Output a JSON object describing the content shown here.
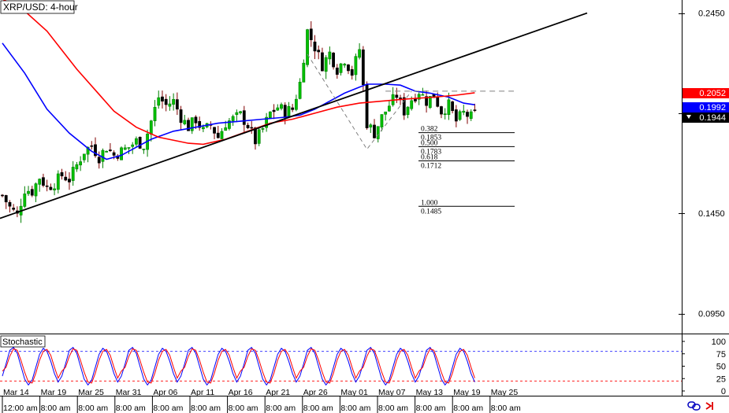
{
  "chart_data": [
    {
      "type": "candlestick",
      "title": "XRP/USD: 4-hour",
      "y_ticks": [
        0.245,
        0.195,
        0.145,
        0.095
      ],
      "y_tick_labels": [
        "0.2450",
        "0.1450",
        "0.0950"
      ],
      "ylim": [
        0.085,
        0.2515
      ],
      "x_labels": [
        "Mar 14",
        "Mar 19",
        "Mar 25",
        "Mar 31",
        "Apr 06",
        "Apr 11",
        "Apr 16",
        "Apr 21",
        "Apr 26",
        "May 01",
        "May 07",
        "May 13",
        "May 19",
        "May 25"
      ],
      "x_sublabels": [
        "12:00 am",
        "8:00 am",
        "8:00 am",
        "8:00 am",
        "8:00 am",
        "8:00 am",
        "8:00 am",
        "8:00 am",
        "8:00 am",
        "8:00 am",
        "8:00 am",
        "8:00 am",
        "8:00 am",
        "8:00 am"
      ],
      "price_badges": [
        {
          "value": "0.2052",
          "color": "#ff0000"
        },
        {
          "value": "0.1992",
          "color": "#0000ff"
        },
        {
          "value": "0.1944",
          "color": "#000000"
        }
      ],
      "trendline": {
        "from": [
          "Mar 14",
          0.1425
        ],
        "to": [
          "May 29",
          0.245
        ],
        "color": "#000000"
      },
      "resistance_dashed": 0.206,
      "moving_averages": [
        {
          "color": "#0000ff",
          "points": [
            [
              0,
              0.23
            ],
            [
              6,
              0.215
            ],
            [
              12,
              0.197
            ],
            [
              18,
              0.185
            ],
            [
              24,
              0.176
            ],
            [
              28,
              0.172
            ],
            [
              32,
              0.174
            ],
            [
              36,
              0.178
            ],
            [
              40,
              0.182
            ],
            [
              46,
              0.186
            ],
            [
              52,
              0.188
            ],
            [
              58,
              0.19
            ],
            [
              64,
              0.191
            ],
            [
              70,
              0.192
            ],
            [
              76,
              0.193
            ],
            [
              80,
              0.194
            ],
            [
              84,
              0.197
            ],
            [
              88,
              0.201
            ],
            [
              92,
              0.205
            ],
            [
              96,
              0.208
            ],
            [
              98,
              0.2095
            ],
            [
              103,
              0.2095
            ],
            [
              107,
              0.209
            ],
            [
              111,
              0.206
            ],
            [
              115,
              0.205
            ],
            [
              120,
              0.203
            ],
            [
              124,
              0.2
            ],
            [
              127,
              0.1992
            ]
          ]
        },
        {
          "color": "#ff0000",
          "points": [
            [
              0,
              0.252
            ],
            [
              6,
              0.246
            ],
            [
              12,
              0.236
            ],
            [
              20,
              0.217
            ],
            [
              30,
              0.196
            ],
            [
              36,
              0.188
            ],
            [
              42,
              0.183
            ],
            [
              50,
              0.18
            ],
            [
              54,
              0.1795
            ],
            [
              60,
              0.182
            ],
            [
              66,
              0.186
            ],
            [
              72,
              0.19
            ],
            [
              78,
              0.192
            ],
            [
              84,
              0.195
            ],
            [
              90,
              0.198
            ],
            [
              96,
              0.2
            ],
            [
              102,
              0.201
            ],
            [
              108,
              0.202
            ],
            [
              116,
              0.203
            ],
            [
              122,
              0.204
            ],
            [
              127,
              0.2052
            ]
          ]
        }
      ],
      "zigzag": {
        "points": [
          [
            82,
            0.2245
          ],
          [
            98,
            0.177
          ],
          [
            110,
            0.206
          ]
        ],
        "color": "#808080"
      },
      "fibonacci": [
        {
          "ratio": "0.382",
          "price": "0.1853",
          "y": 0.1853
        },
        {
          "ratio": "0.500",
          "price": "0.1783",
          "y": 0.1783
        },
        {
          "ratio": "0.618",
          "price": "0.1712",
          "y": 0.1712
        },
        {
          "ratio": "1.000",
          "price": "0.1485",
          "y": 0.1485
        }
      ],
      "price_path": [
        [
          0,
          0.154
        ],
        [
          2,
          0.148
        ],
        [
          4,
          0.144
        ],
        [
          6,
          0.157
        ],
        [
          8,
          0.156
        ],
        [
          10,
          0.163
        ],
        [
          12,
          0.158
        ],
        [
          14,
          0.16
        ],
        [
          16,
          0.164
        ],
        [
          18,
          0.162
        ],
        [
          20,
          0.169
        ],
        [
          22,
          0.176
        ],
        [
          24,
          0.179
        ],
        [
          26,
          0.173
        ],
        [
          28,
          0.178
        ],
        [
          30,
          0.174
        ],
        [
          32,
          0.176
        ],
        [
          34,
          0.178
        ],
        [
          36,
          0.181
        ],
        [
          38,
          0.179
        ],
        [
          40,
          0.191
        ],
        [
          42,
          0.203
        ],
        [
          44,
          0.199
        ],
        [
          46,
          0.201
        ],
        [
          48,
          0.193
        ],
        [
          50,
          0.188
        ],
        [
          52,
          0.192
        ],
        [
          54,
          0.186
        ],
        [
          56,
          0.189
        ],
        [
          58,
          0.183
        ],
        [
          60,
          0.19
        ],
        [
          62,
          0.192
        ],
        [
          64,
          0.194
        ],
        [
          66,
          0.189
        ],
        [
          68,
          0.181
        ],
        [
          70,
          0.187
        ],
        [
          72,
          0.195
        ],
        [
          74,
          0.198
        ],
        [
          76,
          0.196
        ],
        [
          78,
          0.197
        ],
        [
          80,
          0.21
        ],
        [
          82,
          0.236
        ],
        [
          84,
          0.228
        ],
        [
          86,
          0.219
        ],
        [
          88,
          0.225
        ],
        [
          90,
          0.217
        ],
        [
          92,
          0.222
        ],
        [
          94,
          0.215
        ],
        [
          96,
          0.227
        ],
        [
          98,
          0.19
        ],
        [
          100,
          0.185
        ],
        [
          102,
          0.193
        ],
        [
          104,
          0.199
        ],
        [
          106,
          0.204
        ],
        [
          108,
          0.196
        ],
        [
          110,
          0.202
        ],
        [
          112,
          0.206
        ],
        [
          114,
          0.201
        ],
        [
          116,
          0.204
        ],
        [
          118,
          0.196
        ],
        [
          120,
          0.199
        ],
        [
          122,
          0.191
        ],
        [
          124,
          0.195
        ],
        [
          126,
          0.193
        ],
        [
          127,
          0.1944
        ]
      ],
      "n_bars": 128
    },
    {
      "type": "line",
      "title": "Stochastic",
      "y_ticks": [
        100,
        75,
        50,
        25,
        0
      ],
      "ylim": [
        0,
        100
      ],
      "overbought": 80,
      "oversold": 20,
      "series": [
        {
          "color": "#0000ff",
          "cycle": [
            30,
            55,
            82,
            88,
            76,
            50,
            24,
            12,
            22,
            48,
            74,
            86,
            80,
            60,
            35,
            18
          ]
        },
        {
          "color": "#ff0000",
          "cycle": [
            40,
            48,
            70,
            85,
            82,
            62,
            38,
            18,
            16,
            36,
            62,
            80,
            84,
            72,
            48,
            26
          ]
        }
      ]
    }
  ],
  "toolbar": {
    "link_icon": "link-icon",
    "arrow_icon": "arrow-icon"
  }
}
